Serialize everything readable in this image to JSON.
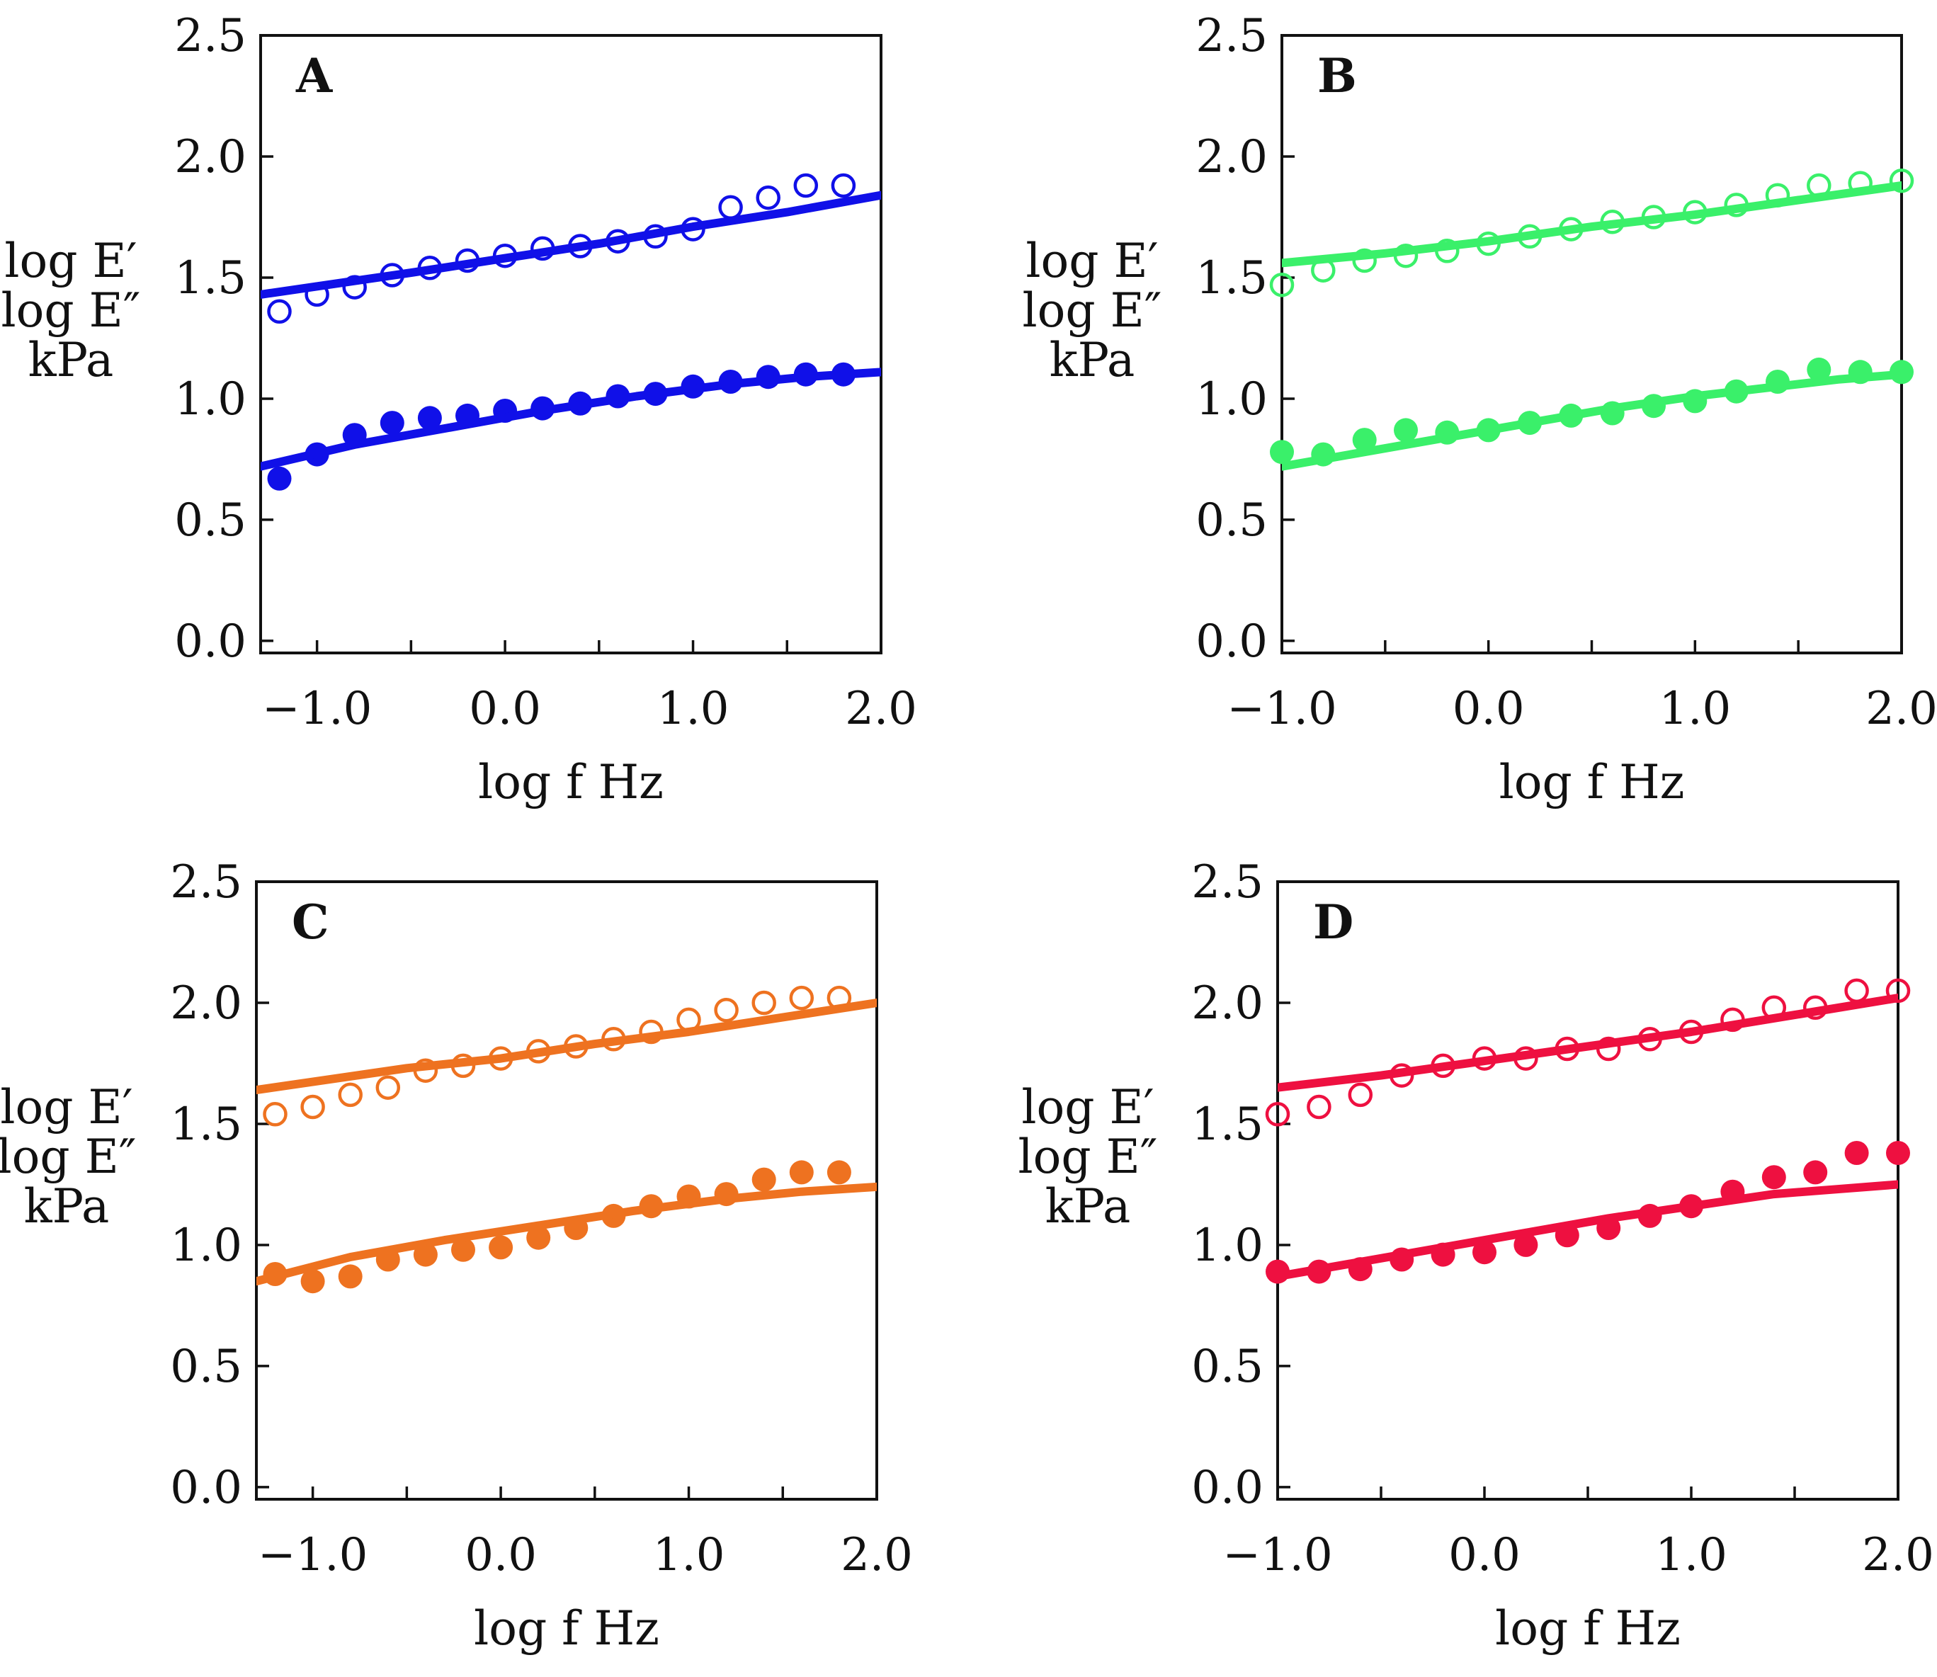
{
  "chart_data": [
    {
      "type": "scatter",
      "panel_label": "A",
      "color": "#1010e8",
      "xlabel": "log f   Hz",
      "ylabel": [
        "log E′",
        "log E″",
        "kPa"
      ],
      "xlim": [
        -1.3,
        2.0
      ],
      "ylim": [
        -0.05,
        2.5
      ],
      "xticks": [
        -1.0,
        -0.5,
        0.0,
        0.5,
        1.0,
        1.5,
        2.0
      ],
      "xtick_labels": [
        "−1.0",
        "",
        "0.0",
        "",
        "1.0",
        "",
        "2.0"
      ],
      "yticks": [
        0.0,
        0.5,
        1.0,
        1.5,
        2.0,
        2.5
      ],
      "ytick_labels": [
        "0.0",
        "0.5",
        "1.0",
        "1.5",
        "2.0",
        "2.5"
      ],
      "series": [
        {
          "name": "E′ data",
          "marker": "open",
          "x": [
            -1.2,
            -1.0,
            -0.8,
            -0.6,
            -0.4,
            -0.2,
            0.0,
            0.2,
            0.4,
            0.6,
            0.8,
            1.0,
            1.2,
            1.4,
            1.6,
            1.8
          ],
          "y": [
            1.36,
            1.43,
            1.46,
            1.51,
            1.54,
            1.57,
            1.59,
            1.62,
            1.63,
            1.65,
            1.67,
            1.7,
            1.79,
            1.83,
            1.88,
            1.88
          ]
        },
        {
          "name": "E″ data",
          "marker": "filled",
          "x": [
            -1.2,
            -1.0,
            -0.8,
            -0.6,
            -0.4,
            -0.2,
            0.0,
            0.2,
            0.4,
            0.6,
            0.8,
            1.0,
            1.2,
            1.4,
            1.6,
            1.8
          ],
          "y": [
            0.67,
            0.77,
            0.85,
            0.9,
            0.92,
            0.93,
            0.95,
            0.96,
            0.98,
            1.01,
            1.02,
            1.05,
            1.07,
            1.09,
            1.1,
            1.1
          ]
        },
        {
          "name": "E′ fit",
          "marker": "line",
          "x": [
            -1.3,
            -0.5,
            0.0,
            0.5,
            1.0,
            1.5,
            2.0
          ],
          "y": [
            1.43,
            1.52,
            1.58,
            1.64,
            1.71,
            1.77,
            1.84
          ]
        },
        {
          "name": "E″ fit",
          "marker": "line",
          "x": [
            -1.3,
            -0.8,
            -0.3,
            0.2,
            0.7,
            1.2,
            1.6,
            2.0
          ],
          "y": [
            0.72,
            0.81,
            0.88,
            0.95,
            1.01,
            1.06,
            1.09,
            1.11
          ]
        }
      ]
    },
    {
      "type": "scatter",
      "panel_label": "B",
      "color": "#3af06a",
      "xlabel": "log f   Hz",
      "ylabel": [
        "log E′",
        "log E″",
        "kPa"
      ],
      "xlim": [
        -1.0,
        2.0
      ],
      "ylim": [
        -0.05,
        2.5
      ],
      "xticks": [
        -1.0,
        -0.5,
        0.0,
        0.5,
        1.0,
        1.5,
        2.0
      ],
      "xtick_labels": [
        "−1.0",
        "",
        "0.0",
        "",
        "1.0",
        "",
        "2.0"
      ],
      "yticks": [
        0.0,
        0.5,
        1.0,
        1.5,
        2.0,
        2.5
      ],
      "ytick_labels": [
        "0.0",
        "0.5",
        "1.0",
        "1.5",
        "2.0",
        "2.5"
      ],
      "series": [
        {
          "name": "E′ data",
          "marker": "open",
          "x": [
            -1.0,
            -0.8,
            -0.6,
            -0.4,
            -0.2,
            0.0,
            0.2,
            0.4,
            0.6,
            0.8,
            1.0,
            1.2,
            1.4,
            1.6,
            1.8,
            2.0
          ],
          "y": [
            1.47,
            1.53,
            1.57,
            1.59,
            1.61,
            1.64,
            1.67,
            1.7,
            1.73,
            1.75,
            1.77,
            1.8,
            1.84,
            1.88,
            1.89,
            1.9
          ]
        },
        {
          "name": "E″ data",
          "marker": "filled",
          "x": [
            -1.0,
            -0.8,
            -0.6,
            -0.4,
            -0.2,
            0.0,
            0.2,
            0.4,
            0.6,
            0.8,
            1.0,
            1.2,
            1.4,
            1.6,
            1.8,
            2.0
          ],
          "y": [
            0.78,
            0.77,
            0.83,
            0.87,
            0.86,
            0.87,
            0.9,
            0.93,
            0.94,
            0.97,
            0.99,
            1.03,
            1.07,
            1.12,
            1.11,
            1.11
          ]
        },
        {
          "name": "E′ fit",
          "marker": "line",
          "x": [
            -1.0,
            -0.5,
            0.0,
            0.5,
            1.0,
            1.5,
            2.0
          ],
          "y": [
            1.56,
            1.6,
            1.65,
            1.71,
            1.76,
            1.82,
            1.88
          ]
        },
        {
          "name": "E″ fit",
          "marker": "line",
          "x": [
            -1.0,
            -0.6,
            -0.2,
            0.2,
            0.6,
            1.0,
            1.4,
            1.7,
            2.0
          ],
          "y": [
            0.72,
            0.78,
            0.84,
            0.9,
            0.96,
            1.01,
            1.05,
            1.08,
            1.1
          ]
        }
      ]
    },
    {
      "type": "scatter",
      "panel_label": "C",
      "color": "#ee7220",
      "xlabel": "log f   Hz",
      "ylabel": [
        "log E′",
        "log E″",
        "kPa"
      ],
      "xlim": [
        -1.3,
        2.0
      ],
      "ylim": [
        -0.05,
        2.5
      ],
      "xticks": [
        -1.0,
        -0.5,
        0.0,
        0.5,
        1.0,
        1.5,
        2.0
      ],
      "xtick_labels": [
        "−1.0",
        "",
        "0.0",
        "",
        "1.0",
        "",
        "2.0"
      ],
      "yticks": [
        0.0,
        0.5,
        1.0,
        1.5,
        2.0,
        2.5
      ],
      "ytick_labels": [
        "0.0",
        "0.5",
        "1.0",
        "1.5",
        "2.0",
        "2.5"
      ],
      "series": [
        {
          "name": "E′ data",
          "marker": "open",
          "x": [
            -1.2,
            -1.0,
            -0.8,
            -0.6,
            -0.4,
            -0.2,
            0.0,
            0.2,
            0.4,
            0.6,
            0.8,
            1.0,
            1.2,
            1.4,
            1.6,
            1.8
          ],
          "y": [
            1.54,
            1.57,
            1.62,
            1.65,
            1.72,
            1.74,
            1.77,
            1.8,
            1.82,
            1.85,
            1.88,
            1.93,
            1.97,
            2.0,
            2.02,
            2.02
          ]
        },
        {
          "name": "E″ data",
          "marker": "filled",
          "x": [
            -1.2,
            -1.0,
            -0.8,
            -0.6,
            -0.4,
            -0.2,
            0.0,
            0.2,
            0.4,
            0.6,
            0.8,
            1.0,
            1.2,
            1.4,
            1.6,
            1.8
          ],
          "y": [
            0.88,
            0.85,
            0.87,
            0.94,
            0.96,
            0.98,
            0.99,
            1.03,
            1.07,
            1.12,
            1.16,
            1.2,
            1.21,
            1.27,
            1.3,
            1.3
          ]
        },
        {
          "name": "E′ fit",
          "marker": "line",
          "x": [
            -1.3,
            -0.5,
            0.0,
            0.5,
            1.0,
            1.5,
            2.0
          ],
          "y": [
            1.64,
            1.73,
            1.77,
            1.83,
            1.88,
            1.94,
            2.0
          ]
        },
        {
          "name": "E″ fit",
          "marker": "line",
          "x": [
            -1.3,
            -0.8,
            -0.3,
            0.2,
            0.7,
            1.2,
            1.6,
            2.0
          ],
          "y": [
            0.85,
            0.95,
            1.02,
            1.08,
            1.14,
            1.19,
            1.22,
            1.24
          ]
        }
      ]
    },
    {
      "type": "scatter",
      "panel_label": "D",
      "color": "#ee1040",
      "xlabel": "log f   Hz",
      "ylabel": [
        "log E′",
        "log E″",
        "kPa"
      ],
      "xlim": [
        -1.0,
        2.0
      ],
      "ylim": [
        -0.05,
        2.5
      ],
      "xticks": [
        -1.0,
        -0.5,
        0.0,
        0.5,
        1.0,
        1.5,
        2.0
      ],
      "xtick_labels": [
        "−1.0",
        "",
        "0.0",
        "",
        "1.0",
        "",
        "2.0"
      ],
      "yticks": [
        0.0,
        0.5,
        1.0,
        1.5,
        2.0,
        2.5
      ],
      "ytick_labels": [
        "0.0",
        "0.5",
        "1.0",
        "1.5",
        "2.0",
        "2.5"
      ],
      "series": [
        {
          "name": "E′ data",
          "marker": "open",
          "x": [
            -1.0,
            -0.8,
            -0.6,
            -0.4,
            -0.2,
            0.0,
            0.2,
            0.4,
            0.6,
            0.8,
            1.0,
            1.2,
            1.4,
            1.6,
            1.8,
            2.0
          ],
          "y": [
            1.54,
            1.57,
            1.62,
            1.7,
            1.74,
            1.77,
            1.77,
            1.81,
            1.81,
            1.85,
            1.88,
            1.93,
            1.98,
            1.98,
            2.05,
            2.05
          ]
        },
        {
          "name": "E″ data",
          "marker": "filled",
          "x": [
            -1.0,
            -0.8,
            -0.6,
            -0.4,
            -0.2,
            0.0,
            0.2,
            0.4,
            0.6,
            0.8,
            1.0,
            1.2,
            1.4,
            1.6,
            1.8,
            2.0
          ],
          "y": [
            0.89,
            0.89,
            0.9,
            0.94,
            0.96,
            0.97,
            1.0,
            1.04,
            1.07,
            1.12,
            1.16,
            1.22,
            1.28,
            1.3,
            1.38,
            1.38
          ]
        },
        {
          "name": "E′ fit",
          "marker": "line",
          "x": [
            -1.0,
            -0.5,
            0.0,
            0.5,
            1.0,
            1.5,
            2.0
          ],
          "y": [
            1.65,
            1.7,
            1.76,
            1.82,
            1.88,
            1.95,
            2.02
          ]
        },
        {
          "name": "E″ fit",
          "marker": "line",
          "x": [
            -1.0,
            -0.6,
            -0.2,
            0.2,
            0.6,
            1.0,
            1.4,
            1.7,
            2.0
          ],
          "y": [
            0.87,
            0.93,
            0.99,
            1.05,
            1.11,
            1.16,
            1.21,
            1.23,
            1.25
          ]
        }
      ]
    }
  ]
}
